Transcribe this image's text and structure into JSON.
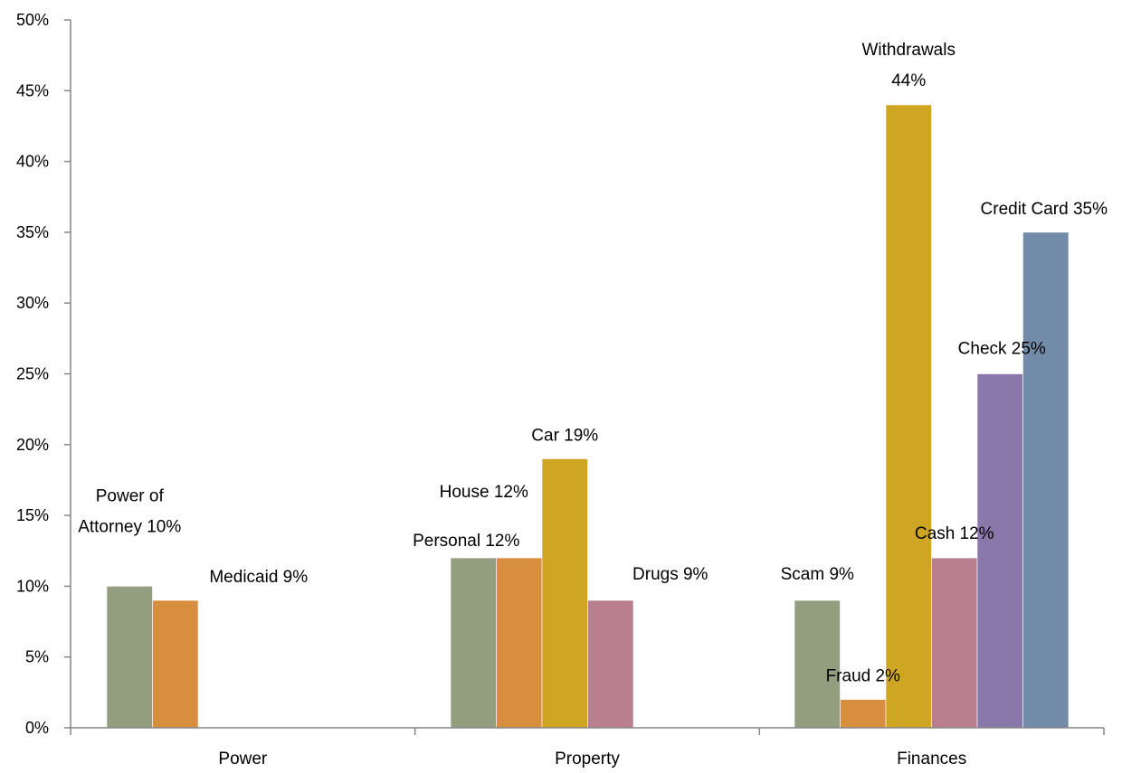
{
  "chart_data": {
    "type": "bar",
    "title": "",
    "xlabel": "",
    "ylabel": "",
    "ylim": [
      0,
      50
    ],
    "yticks": [
      "0%",
      "5%",
      "10%",
      "15%",
      "20%",
      "25%",
      "30%",
      "35%",
      "40%",
      "45%",
      "50%"
    ],
    "grid": false,
    "legend": "none",
    "categories": [
      {
        "name": "Power",
        "bars": [
          {
            "value": 10,
            "color": "#929e7e",
            "label": [
              "Power of",
              "Attorney 10%"
            ]
          },
          {
            "value": 9,
            "color": "#d78e3e",
            "label": [
              "Medicaid 9%"
            ]
          }
        ]
      },
      {
        "name": "Property",
        "bars": [
          {
            "value": 12,
            "color": "#929e7e",
            "label": [
              "Personal 12%"
            ]
          },
          {
            "value": 12,
            "color": "#d78e3e",
            "label": [
              "House  12%"
            ]
          },
          {
            "value": 19,
            "color": "#cfa624",
            "label": [
              "Car 19%"
            ]
          },
          {
            "value": 9,
            "color": "#b97f8e",
            "label": [
              "Drugs 9%"
            ]
          }
        ]
      },
      {
        "name": "Finances",
        "bars": [
          {
            "value": 9,
            "color": "#929e7e",
            "label": [
              "Scam 9%"
            ]
          },
          {
            "value": 2,
            "color": "#d78e3e",
            "label": [
              "Fraud 2%"
            ]
          },
          {
            "value": 44,
            "color": "#cfa624",
            "label": [
              "Withdrawals",
              "44%"
            ]
          },
          {
            "value": 12,
            "color": "#b97f8e",
            "label": [
              "Cash 12%"
            ]
          },
          {
            "value": 25,
            "color": "#8a78aa",
            "label": [
              "Check 25%"
            ]
          },
          {
            "value": 35,
            "color": "#718ba9",
            "label": [
              "Credit Card 35%"
            ]
          }
        ]
      }
    ]
  }
}
